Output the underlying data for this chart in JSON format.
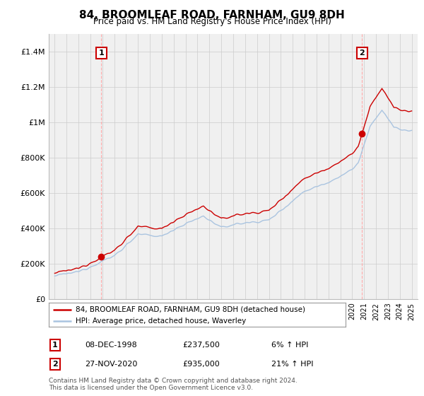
{
  "title": "84, BROOMLEAF ROAD, FARNHAM, GU9 8DH",
  "subtitle": "Price paid vs. HM Land Registry's House Price Index (HPI)",
  "legend_line1": "84, BROOMLEAF ROAD, FARNHAM, GU9 8DH (detached house)",
  "legend_line2": "HPI: Average price, detached house, Waverley",
  "annotation1_date": "08-DEC-1998",
  "annotation1_price": "£237,500",
  "annotation1_hpi": "6% ↑ HPI",
  "annotation2_date": "27-NOV-2020",
  "annotation2_price": "£935,000",
  "annotation2_hpi": "21% ↑ HPI",
  "footer": "Contains HM Land Registry data © Crown copyright and database right 2024.\nThis data is licensed under the Open Government Licence v3.0.",
  "hpi_color": "#aac4e0",
  "price_color": "#cc0000",
  "marker_color": "#cc0000",
  "dashed_color": "#cc0000",
  "ylim": [
    0,
    1500000
  ],
  "yticks": [
    0,
    200000,
    400000,
    600000,
    800000,
    1000000,
    1200000,
    1400000
  ],
  "ytick_labels": [
    "£0",
    "£200K",
    "£400K",
    "£600K",
    "£800K",
    "£1M",
    "£1.2M",
    "£1.4M"
  ],
  "background_color": "#f0f0f0",
  "grid_color": "#cccccc"
}
